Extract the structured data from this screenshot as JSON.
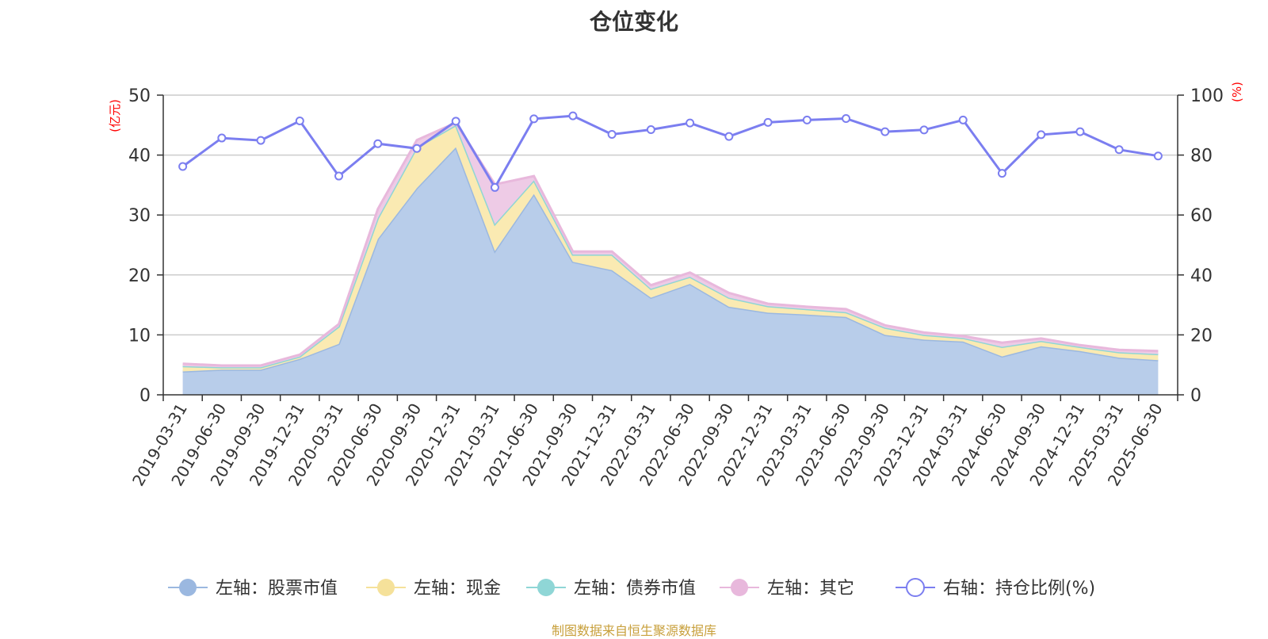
{
  "chart_data": {
    "type": "area",
    "title": "仓位变化",
    "left_axis_unit": "(亿元)",
    "right_axis_unit": "(%)",
    "left_ylim": [
      0,
      50
    ],
    "left_ticks": [
      0,
      10,
      20,
      30,
      40,
      50
    ],
    "right_ylim": [
      0,
      100
    ],
    "right_ticks": [
      0,
      20,
      40,
      60,
      80,
      100
    ],
    "grid": true,
    "legend_position": "bottom",
    "categories": [
      "2019-03-31",
      "2019-06-30",
      "2019-09-30",
      "2019-12-31",
      "2020-03-31",
      "2020-06-30",
      "2020-09-30",
      "2020-12-31",
      "2021-03-31",
      "2021-06-30",
      "2021-09-30",
      "2021-12-31",
      "2022-03-31",
      "2022-06-30",
      "2022-09-30",
      "2022-12-31",
      "2023-03-31",
      "2023-06-30",
      "2023-09-30",
      "2023-12-31",
      "2024-03-31",
      "2024-06-30",
      "2024-09-30",
      "2024-12-31",
      "2025-03-31",
      "2025-06-30"
    ],
    "series": [
      {
        "name": "左轴：股票市值",
        "axis": "left",
        "stacked": true,
        "color": "#9bb8e0",
        "fill": "#b8cdea",
        "values": [
          3.9,
          4.2,
          4.2,
          6.0,
          8.5,
          26.0,
          34.5,
          41.3,
          24.0,
          33.5,
          22.2,
          20.8,
          16.2,
          18.5,
          14.7,
          13.7,
          13.4,
          13.0,
          10.0,
          9.2,
          8.9,
          6.4,
          8.1,
          7.3,
          6.2,
          5.8
        ]
      },
      {
        "name": "左轴：现金",
        "axis": "left",
        "stacked": true,
        "color": "#f5e19a",
        "fill": "#faeab2",
        "values": [
          0.9,
          0.4,
          0.4,
          0.4,
          2.9,
          3.5,
          6.8,
          3.7,
          4.5,
          2.3,
          1.2,
          2.6,
          1.5,
          1.2,
          1.5,
          1.1,
          0.9,
          0.8,
          1.2,
          0.8,
          0.6,
          1.6,
          0.9,
          0.7,
          0.9,
          1.0
        ]
      },
      {
        "name": "左轴：债券市值",
        "axis": "left",
        "stacked": true,
        "color": "#8fd6d6",
        "fill": "#a9e0e0",
        "values": [
          0,
          0,
          0,
          0,
          0,
          0,
          0,
          0,
          0,
          0,
          0,
          0,
          0,
          0,
          0,
          0,
          0,
          0,
          0,
          0,
          0,
          0,
          0,
          0,
          0,
          0
        ]
      },
      {
        "name": "左轴：其它",
        "axis": "left",
        "stacked": true,
        "color": "#e8b8dc",
        "fill": "#eecbe6",
        "values": [
          0.4,
          0.3,
          0.3,
          0.3,
          0.4,
          1.5,
          1.2,
          0.4,
          6.6,
          0.7,
          0.5,
          0.5,
          0.6,
          0.7,
          0.8,
          0.4,
          0.4,
          0.5,
          0.4,
          0.4,
          0.3,
          0.7,
          0.4,
          0.3,
          0.4,
          0.5
        ]
      },
      {
        "name": "右轴：持仓比例(%)",
        "axis": "right",
        "type": "line",
        "color": "#7b7ef0",
        "values": [
          76.2,
          85.7,
          84.9,
          91.4,
          73.0,
          83.8,
          82.2,
          91.3,
          69.2,
          92.1,
          93.1,
          86.9,
          88.5,
          90.7,
          86.2,
          90.9,
          91.7,
          92.2,
          87.8,
          88.4,
          91.7,
          73.9,
          86.8,
          87.8,
          81.8,
          79.7
        ]
      }
    ]
  },
  "footer": {
    "source": "制图数据来自恒生聚源数据库"
  }
}
